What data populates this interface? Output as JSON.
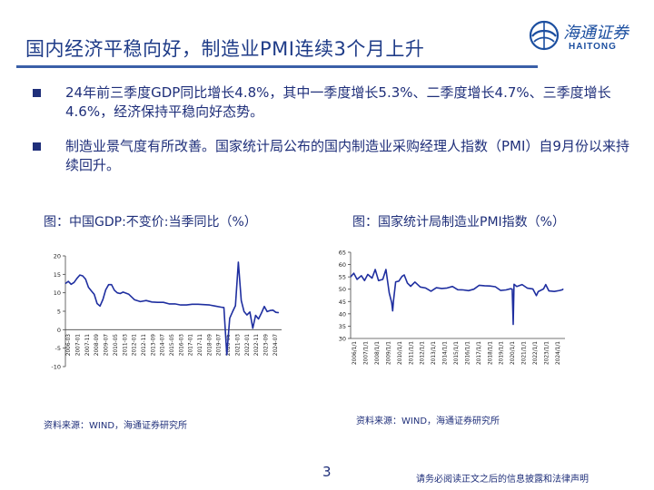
{
  "header": {
    "title": "国内经济平稳向好，制造业PMI连续3个月上升",
    "logo_cn": "海通证券",
    "logo_en": "HAITONG"
  },
  "bullets": [
    {
      "text": "24年前三季度GDP同比增长4.8%，其中一季度增长5.3%、二季度增长4.7%、三季度增长4.6%，经济保持平稳向好态势。"
    },
    {
      "text": "制造业景气度有所改善。国家统计局公布的国内制造业采购经理人指数（PMI）自9月份以来持续回升。"
    }
  ],
  "figures": [
    {
      "caption": "图：中国GDP:不变价:当季同比（%）",
      "source": "资料来源：WIND，海通证券研究所"
    },
    {
      "caption": "图：国家统计局制造业PMI指数（%）",
      "source": "资料来源：WIND，海通证券研究所"
    }
  ],
  "footer": {
    "page_number": "3",
    "disclaimer": "请务必阅读正文之后的信息披露和法律声明"
  },
  "colors": {
    "primary": "#1f2f7a",
    "series": "#1f2fa0",
    "title": "#1f3c88"
  },
  "chart_data": [
    {
      "type": "line",
      "ylim": [
        -10,
        20
      ],
      "yticks": [
        "20",
        "15",
        "10",
        "5",
        "0",
        "-5",
        "-10"
      ],
      "xticks": [
        "2006-03",
        "2007-01",
        "2007-11",
        "2008-09",
        "2009-07",
        "2010-05",
        "2011-03",
        "2012-01",
        "2012-11",
        "2013-09",
        "2014-07",
        "2015-05",
        "2016-03",
        "2017-01",
        "2017-11",
        "2018-09",
        "2019-07",
        "2020-05",
        "2021-03",
        "2022-01",
        "2022-11",
        "2023-09",
        "2024-07"
      ],
      "series": [
        {
          "x": [
            2006.0,
            2006.25,
            2006.5,
            2006.75,
            2007.0,
            2007.25,
            2007.5,
            2007.75,
            2008.0,
            2008.25,
            2008.5,
            2008.75,
            2009.0,
            2009.25,
            2009.5,
            2009.75,
            2010.0,
            2010.25,
            2010.5,
            2010.75,
            2011.0,
            2011.5,
            2012.0,
            2012.5,
            2013.0,
            2013.5,
            2014.0,
            2014.5,
            2015.0,
            2015.5,
            2016.0,
            2016.5,
            2017.0,
            2017.5,
            2018.0,
            2018.5,
            2019.0,
            2019.5,
            2019.75,
            2020.0,
            2020.25,
            2020.5,
            2020.75,
            2021.0,
            2021.25,
            2021.5,
            2021.75,
            2022.0,
            2022.25,
            2022.5,
            2022.75,
            2023.0,
            2023.25,
            2023.5,
            2023.75,
            2024.0,
            2024.25,
            2024.5
          ],
          "values": [
            12.5,
            13.1,
            12.3,
            12.8,
            13.9,
            14.8,
            14.6,
            13.7,
            11.5,
            10.5,
            9.6,
            7.1,
            6.4,
            8.2,
            10.8,
            12.2,
            12.2,
            10.7,
            10.0,
            9.8,
            10.2,
            9.6,
            8.1,
            7.6,
            7.9,
            7.5,
            7.4,
            7.4,
            7.0,
            7.0,
            6.7,
            6.7,
            6.9,
            6.9,
            6.8,
            6.7,
            6.4,
            6.1,
            6.0,
            -6.8,
            3.1,
            4.9,
            6.5,
            18.3,
            7.9,
            4.9,
            4.0,
            4.8,
            0.4,
            3.9,
            2.9,
            4.5,
            6.3,
            4.9,
            5.2,
            5.3,
            4.7,
            4.6
          ]
        }
      ]
    },
    {
      "type": "line",
      "ylim": [
        30,
        65
      ],
      "yticks": [
        "65",
        "60",
        "55",
        "50",
        "45",
        "40",
        "35",
        "30"
      ],
      "xticks": [
        "2006/1/1",
        "2007/1/1",
        "2008/1/1",
        "2009/1/1",
        "2010/1/1",
        "2011/1/1",
        "2012/1/1",
        "2013/1/1",
        "2014/1/1",
        "2015/1/1",
        "2016/1/1",
        "2017/1/1",
        "2018/1/1",
        "2019/1/1",
        "2020/1/1",
        "2021/1/1",
        "2022/1/1",
        "2023/1/1",
        "2024/1/1"
      ],
      "series": [
        {
          "x": [
            2005.0,
            2005.3,
            2005.6,
            2006.0,
            2006.3,
            2006.6,
            2007.0,
            2007.3,
            2007.6,
            2008.0,
            2008.3,
            2008.6,
            2008.83,
            2008.92,
            2009.0,
            2009.2,
            2009.5,
            2009.8,
            2010.0,
            2010.3,
            2010.6,
            2011.0,
            2011.5,
            2012.0,
            2012.5,
            2013.0,
            2013.5,
            2014.0,
            2014.5,
            2015.0,
            2015.5,
            2016.0,
            2016.5,
            2017.0,
            2017.5,
            2018.0,
            2018.5,
            2019.0,
            2019.5,
            2019.92,
            2020.08,
            2020.17,
            2020.25,
            2020.5,
            2021.0,
            2021.5,
            2022.0,
            2022.33,
            2022.5,
            2023.0,
            2023.2,
            2023.5,
            2024.0,
            2024.5,
            2024.75,
            2024.83
          ],
          "values": [
            55.0,
            56.5,
            54.0,
            55.5,
            53.5,
            56.0,
            54.5,
            58.0,
            53.5,
            54.0,
            58.0,
            48.5,
            44.6,
            41.2,
            45.3,
            53.0,
            53.3,
            55.2,
            55.8,
            52.5,
            51.2,
            52.9,
            50.9,
            50.5,
            49.2,
            50.6,
            50.3,
            50.5,
            51.1,
            49.8,
            49.7,
            49.4,
            50.0,
            51.6,
            51.4,
            51.3,
            51.0,
            49.5,
            49.7,
            50.2,
            50.0,
            35.7,
            52.0,
            51.1,
            51.9,
            50.4,
            50.1,
            47.4,
            49.0,
            50.1,
            51.9,
            49.3,
            49.1,
            49.5,
            49.8,
            50.1
          ]
        }
      ]
    }
  ]
}
